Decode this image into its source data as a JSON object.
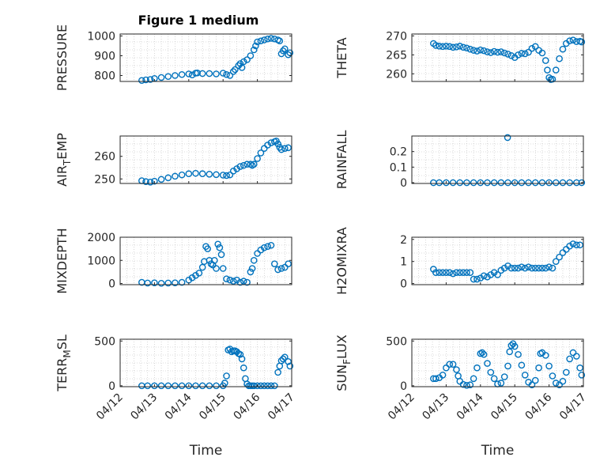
{
  "figure": {
    "title": "Figure 1 medium",
    "marker_color": "#0072BD",
    "marker": "open-circle",
    "grid": "dotted minor grid on"
  },
  "chart_data": [
    {
      "type": "scatter",
      "ylabel": "PRESSURE",
      "ylim": [
        770,
        1010
      ],
      "yticks": [
        "800",
        "900",
        "1000"
      ],
      "ytick_values": [
        800,
        900,
        1000
      ],
      "xlim": [
        0,
        5
      ],
      "xticks": [],
      "xlabel": "",
      "series": [
        {
          "x": [
            0.63,
            0.75,
            0.88,
            1.0,
            1.2,
            1.4,
            1.6,
            1.8,
            2.0,
            2.1,
            2.2,
            2.25,
            2.4,
            2.6,
            2.8,
            3.0,
            3.1,
            3.2,
            3.3,
            3.35,
            3.45,
            3.5,
            3.55,
            3.6,
            3.7,
            3.8,
            3.9,
            3.95,
            4.0,
            4.1,
            4.2,
            4.3,
            4.4,
            4.5,
            4.6,
            4.65,
            4.7,
            4.75,
            4.8,
            4.9,
            4.95
          ],
          "y": [
            775,
            778,
            780,
            785,
            790,
            795,
            800,
            805,
            808,
            803,
            812,
            813,
            810,
            810,
            808,
            812,
            805,
            800,
            820,
            830,
            850,
            860,
            840,
            870,
            880,
            900,
            930,
            950,
            970,
            975,
            980,
            985,
            988,
            985,
            980,
            975,
            910,
            925,
            935,
            905,
            915
          ]
        }
      ]
    },
    {
      "type": "scatter",
      "ylabel": "THETA",
      "ylim": [
        258,
        270.5
      ],
      "yticks": [
        "260",
        "265",
        "270"
      ],
      "ytick_values": [
        260,
        265,
        270
      ],
      "xlim": [
        0,
        5
      ],
      "xticks": [],
      "xlabel": "",
      "series": [
        {
          "x": [
            0.63,
            0.7,
            0.8,
            0.9,
            1.0,
            1.1,
            1.2,
            1.3,
            1.4,
            1.5,
            1.6,
            1.7,
            1.8,
            1.9,
            2.0,
            2.1,
            2.2,
            2.3,
            2.4,
            2.5,
            2.6,
            2.7,
            2.8,
            2.9,
            3.0,
            3.1,
            3.2,
            3.3,
            3.4,
            3.5,
            3.6,
            3.7,
            3.8,
            3.9,
            3.95,
            4.0,
            4.05,
            4.1,
            4.2,
            4.3,
            4.4,
            4.5,
            4.6,
            4.7,
            4.8,
            4.9,
            4.95
          ],
          "y": [
            268,
            267.5,
            267.3,
            267.2,
            267.3,
            267.2,
            267,
            267.1,
            267.3,
            267,
            266.8,
            266.5,
            266.2,
            266,
            266.3,
            266.1,
            265.8,
            265.6,
            265.9,
            265.7,
            265.8,
            265.5,
            265.2,
            264.8,
            264.3,
            265,
            265.4,
            265.3,
            265.7,
            266.7,
            267.2,
            266.2,
            265.5,
            263.5,
            261,
            259,
            258.5,
            258.6,
            261,
            264,
            266.5,
            268,
            268.7,
            268.9,
            268.5,
            268.6,
            268.4
          ]
        }
      ]
    },
    {
      "type": "scatter",
      "ylabel": "AIR_TEMP",
      "ylim": [
        248,
        269
      ],
      "yticks": [
        "250",
        "260"
      ],
      "ytick_values": [
        250,
        260
      ],
      "xlim": [
        0,
        5
      ],
      "xticks": [],
      "xlabel": "",
      "series": [
        {
          "x": [
            0.63,
            0.75,
            0.88,
            1.0,
            1.2,
            1.4,
            1.6,
            1.8,
            2.0,
            2.2,
            2.4,
            2.6,
            2.8,
            3.0,
            3.1,
            3.2,
            3.3,
            3.4,
            3.5,
            3.6,
            3.7,
            3.8,
            3.85,
            3.9,
            4.0,
            4.1,
            4.2,
            4.3,
            4.4,
            4.5,
            4.55,
            4.6,
            4.65,
            4.7,
            4.8,
            4.9
          ],
          "y": [
            249.2,
            248.8,
            248.6,
            249,
            249.8,
            250.5,
            251.2,
            251.8,
            252.3,
            252.5,
            252.3,
            252.1,
            251.9,
            251.7,
            251.5,
            251.8,
            253.5,
            254.5,
            255.5,
            256,
            256.5,
            256.5,
            256,
            256.5,
            259,
            261.5,
            263.5,
            265,
            266,
            266.5,
            266.8,
            265.5,
            264,
            263,
            263.5,
            263.8
          ]
        }
      ]
    },
    {
      "type": "scatter",
      "ylabel": "RAINFALL",
      "ylim": [
        -0.005,
        0.3
      ],
      "yticks": [
        "0",
        "0.1",
        "0.2"
      ],
      "ytick_values": [
        0,
        0.1,
        0.2
      ],
      "xlim": [
        0,
        5
      ],
      "xticks": [],
      "xlabel": "",
      "series": [
        {
          "x": [
            0.63,
            0.8,
            1.0,
            1.2,
            1.4,
            1.6,
            1.8,
            2.0,
            2.2,
            2.4,
            2.6,
            2.8,
            3.0,
            3.2,
            3.4,
            3.6,
            3.8,
            4.0,
            4.2,
            4.4,
            4.6,
            4.8,
            4.95,
            2.79
          ],
          "y": [
            0,
            0,
            0,
            0,
            0,
            0,
            0,
            0,
            0,
            0,
            0,
            0,
            0,
            0,
            0,
            0,
            0,
            0,
            0,
            0,
            0,
            0,
            0,
            0.29
          ]
        }
      ]
    },
    {
      "type": "scatter",
      "ylabel": "MIXDEPTH",
      "ylim": [
        -50,
        2000
      ],
      "yticks": [
        "0",
        "1000",
        "2000"
      ],
      "ytick_values": [
        0,
        1000,
        2000
      ],
      "xlim": [
        0,
        5
      ],
      "xticks": [],
      "xlabel": "",
      "series": [
        {
          "x": [
            0.63,
            0.8,
            1.0,
            1.2,
            1.4,
            1.6,
            1.8,
            2.0,
            2.1,
            2.2,
            2.3,
            2.4,
            2.45,
            2.5,
            2.55,
            2.6,
            2.65,
            2.7,
            2.75,
            2.8,
            2.85,
            2.9,
            2.95,
            3.0,
            3.1,
            3.2,
            3.3,
            3.4,
            3.5,
            3.6,
            3.7,
            3.8,
            3.85,
            3.9,
            4.0,
            4.1,
            4.2,
            4.3,
            4.4,
            4.5,
            4.6,
            4.7,
            4.8,
            4.9
          ],
          "y": [
            50,
            20,
            30,
            10,
            20,
            30,
            50,
            150,
            250,
            350,
            450,
            700,
            950,
            1600,
            1500,
            1000,
            850,
            800,
            1000,
            650,
            1700,
            1550,
            1250,
            650,
            200,
            150,
            100,
            150,
            50,
            100,
            50,
            500,
            650,
            1000,
            1300,
            1450,
            1550,
            1600,
            1650,
            850,
            600,
            650,
            700,
            850
          ]
        }
      ]
    },
    {
      "type": "scatter",
      "ylabel": "H2OMIXRA",
      "ylim": [
        -0.05,
        2.1
      ],
      "yticks": [
        "0",
        "1",
        "2"
      ],
      "ytick_values": [
        0,
        1,
        2
      ],
      "xlim": [
        0,
        5
      ],
      "xticks": [],
      "xlabel": "",
      "series": [
        {
          "x": [
            0.63,
            0.7,
            0.8,
            0.9,
            1.0,
            1.1,
            1.2,
            1.3,
            1.4,
            1.5,
            1.6,
            1.7,
            1.8,
            1.9,
            2.0,
            2.1,
            2.2,
            2.3,
            2.4,
            2.5,
            2.6,
            2.7,
            2.8,
            2.9,
            3.0,
            3.1,
            3.2,
            3.3,
            3.4,
            3.5,
            3.6,
            3.7,
            3.8,
            3.9,
            4.0,
            4.1,
            4.2,
            4.3,
            4.4,
            4.5,
            4.6,
            4.7,
            4.8,
            4.9
          ],
          "y": [
            0.65,
            0.5,
            0.5,
            0.5,
            0.5,
            0.5,
            0.45,
            0.5,
            0.5,
            0.5,
            0.5,
            0.5,
            0.2,
            0.2,
            0.25,
            0.35,
            0.3,
            0.4,
            0.5,
            0.4,
            0.6,
            0.7,
            0.8,
            0.7,
            0.7,
            0.7,
            0.75,
            0.7,
            0.75,
            0.7,
            0.7,
            0.7,
            0.7,
            0.7,
            0.75,
            0.7,
            1.0,
            1.2,
            1.4,
            1.55,
            1.7,
            1.8,
            1.75,
            1.75
          ]
        }
      ]
    },
    {
      "type": "scatter",
      "ylabel": "TERR_MSL",
      "ylim": [
        -10,
        520
      ],
      "yticks": [
        "0",
        "500"
      ],
      "ytick_values": [
        0,
        500
      ],
      "xlim": [
        0,
        5
      ],
      "xticks": [
        "04/12",
        "04/13",
        "04/14",
        "04/15",
        "04/16",
        "04/17"
      ],
      "xtick_values": [
        0,
        1,
        2,
        3,
        4,
        5
      ],
      "xlabel": "Time",
      "series": [
        {
          "x": [
            0.63,
            0.8,
            1.0,
            1.2,
            1.4,
            1.6,
            1.8,
            2.0,
            2.2,
            2.4,
            2.6,
            2.8,
            3.0,
            3.05,
            3.1,
            3.15,
            3.2,
            3.25,
            3.3,
            3.35,
            3.4,
            3.45,
            3.5,
            3.55,
            3.6,
            3.65,
            3.7,
            3.75,
            3.8,
            3.85,
            3.9,
            4.0,
            4.1,
            4.2,
            4.3,
            4.4,
            4.5,
            4.6,
            4.65,
            4.7,
            4.75,
            4.8,
            4.9,
            4.95
          ],
          "y": [
            0,
            0,
            0,
            0,
            0,
            0,
            0,
            0,
            0,
            0,
            0,
            0,
            0,
            30,
            110,
            400,
            410,
            380,
            390,
            390,
            380,
            360,
            350,
            300,
            200,
            80,
            20,
            0,
            0,
            0,
            0,
            0,
            0,
            0,
            0,
            0,
            0,
            150,
            220,
            280,
            300,
            320,
            270,
            220
          ]
        }
      ]
    },
    {
      "type": "scatter",
      "ylabel": "SUN_FLUX",
      "ylim": [
        -10,
        520
      ],
      "yticks": [
        "0",
        "500"
      ],
      "ytick_values": [
        0,
        500
      ],
      "xlim": [
        0,
        5
      ],
      "xticks": [
        "04/12",
        "04/13",
        "04/14",
        "04/15",
        "04/16",
        "04/17"
      ],
      "xtick_values": [
        0,
        1,
        2,
        3,
        4,
        5
      ],
      "xlabel": "Time",
      "series": [
        {
          "x": [
            0.63,
            0.7,
            0.8,
            0.9,
            1.0,
            1.1,
            1.2,
            1.3,
            1.35,
            1.4,
            1.5,
            1.6,
            1.7,
            1.8,
            1.9,
            2.0,
            2.05,
            2.1,
            2.2,
            2.3,
            2.4,
            2.5,
            2.6,
            2.7,
            2.8,
            2.85,
            2.9,
            2.95,
            3.0,
            3.1,
            3.2,
            3.3,
            3.4,
            3.5,
            3.6,
            3.7,
            3.75,
            3.8,
            3.9,
            4.0,
            4.1,
            4.2,
            4.3,
            4.4,
            4.5,
            4.6,
            4.7,
            4.8,
            4.9,
            4.95
          ],
          "y": [
            80,
            80,
            90,
            120,
            200,
            240,
            240,
            180,
            110,
            50,
            15,
            5,
            10,
            80,
            200,
            360,
            370,
            350,
            250,
            150,
            80,
            20,
            30,
            100,
            220,
            380,
            450,
            470,
            440,
            350,
            230,
            120,
            40,
            10,
            60,
            200,
            360,
            370,
            340,
            220,
            110,
            30,
            10,
            50,
            150,
            300,
            370,
            330,
            200,
            120
          ]
        }
      ]
    }
  ]
}
